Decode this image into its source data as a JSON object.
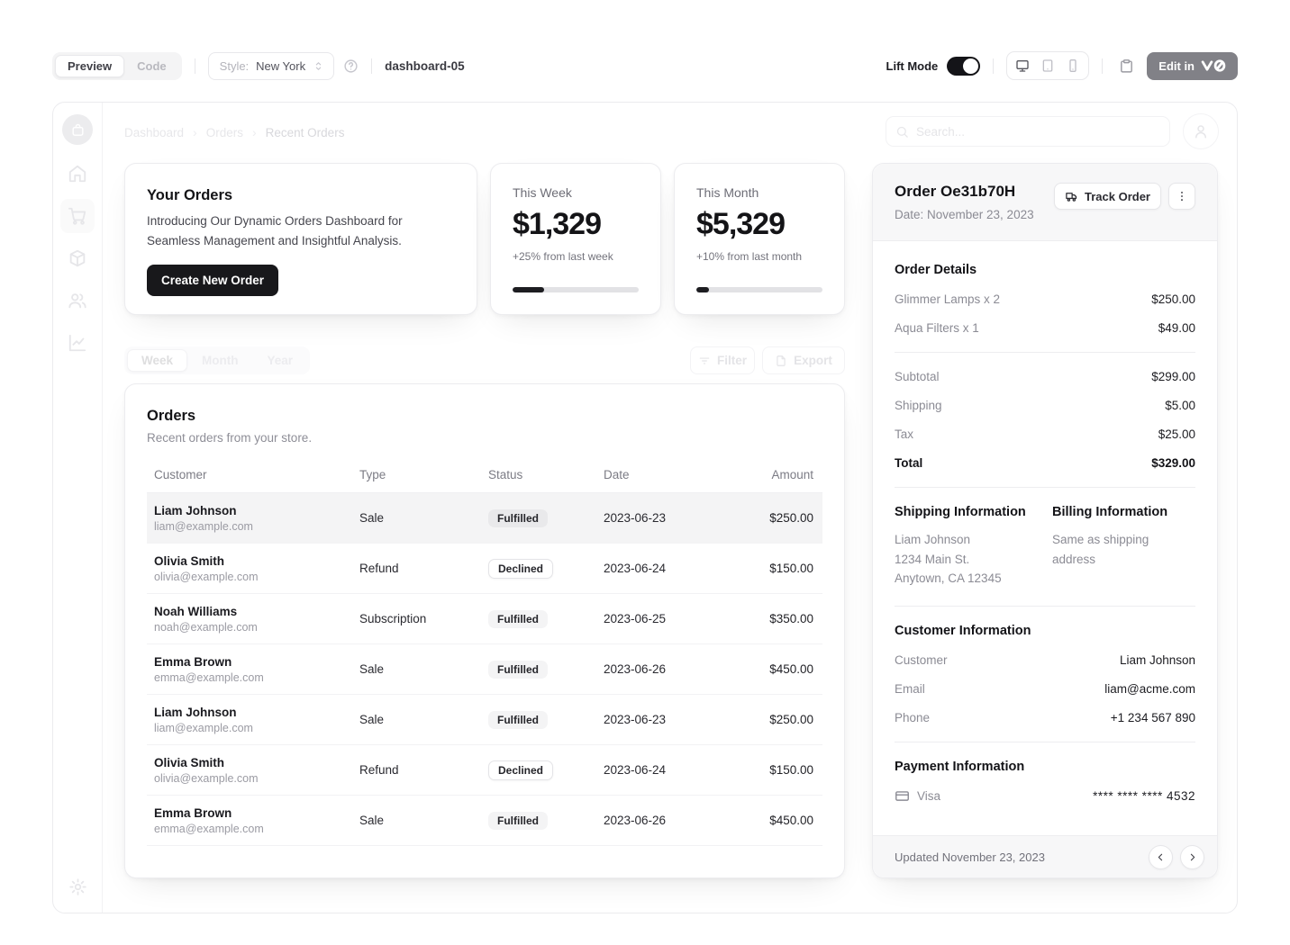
{
  "toolbar": {
    "preview_tab": "Preview",
    "code_tab": "Code",
    "style_label": "Style:",
    "style_value": "New York",
    "project_name": "dashboard-05",
    "lift_mode_label": "Lift Mode",
    "edit_in_label": "Edit in"
  },
  "breadcrumb": {
    "items": [
      {
        "label": "Dashboard",
        "state": "muted"
      },
      {
        "label": "Orders",
        "state": "muted"
      },
      {
        "label": "Recent Orders",
        "state": "active"
      }
    ]
  },
  "search": {
    "placeholder": "Search..."
  },
  "icons": {
    "sidebar": [
      "bag-logo",
      "home",
      "shopping-cart",
      "package",
      "users",
      "line-chart",
      "settings-gear"
    ],
    "toolbar": [
      "help-circle",
      "chevrons-up-down",
      "monitor",
      "tablet",
      "smartphone",
      "clipboard",
      "v0-logo"
    ],
    "misc": [
      "search",
      "user",
      "filter-lines",
      "export-file",
      "truck",
      "ellipsis-vertical",
      "credit-card",
      "chevron-left",
      "chevron-right"
    ]
  },
  "promo_card": {
    "title": "Your Orders",
    "description": "Introducing Our Dynamic Orders Dashboard for Seamless Management and Insightful Analysis.",
    "cta_label": "Create New Order"
  },
  "stat_cards": [
    {
      "label": "This Week",
      "value": "$1,329",
      "delta": "+25% from last week",
      "progress": 25
    },
    {
      "label": "This Month",
      "value": "$5,329",
      "delta": "+10% from last month",
      "progress": 10
    }
  ],
  "period_tabs": [
    {
      "label": "Week",
      "state": "active"
    },
    {
      "label": "Month",
      "state": "muted"
    },
    {
      "label": "Year",
      "state": "muted"
    }
  ],
  "table_actions": {
    "filter_label": "Filter",
    "export_label": "Export"
  },
  "orders_card": {
    "title": "Orders",
    "subtitle": "Recent orders from your store.",
    "columns": [
      "Customer",
      "Type",
      "Status",
      "Date",
      "Amount"
    ],
    "rows": [
      {
        "customer": "Liam Johnson",
        "email": "liam@example.com",
        "type": "Sale",
        "status": "Fulfilled",
        "status_variant": "secondary",
        "date": "2023-06-23",
        "amount": "$250.00",
        "state": "selected"
      },
      {
        "customer": "Olivia Smith",
        "email": "olivia@example.com",
        "type": "Refund",
        "status": "Declined",
        "status_variant": "outline",
        "date": "2023-06-24",
        "amount": "$150.00",
        "state": ""
      },
      {
        "customer": "Noah Williams",
        "email": "noah@example.com",
        "type": "Subscription",
        "status": "Fulfilled",
        "status_variant": "secondary",
        "date": "2023-06-25",
        "amount": "$350.00",
        "state": ""
      },
      {
        "customer": "Emma Brown",
        "email": "emma@example.com",
        "type": "Sale",
        "status": "Fulfilled",
        "status_variant": "secondary",
        "date": "2023-06-26",
        "amount": "$450.00",
        "state": ""
      },
      {
        "customer": "Liam Johnson",
        "email": "liam@example.com",
        "type": "Sale",
        "status": "Fulfilled",
        "status_variant": "secondary",
        "date": "2023-06-23",
        "amount": "$250.00",
        "state": ""
      },
      {
        "customer": "Olivia Smith",
        "email": "olivia@example.com",
        "type": "Refund",
        "status": "Declined",
        "status_variant": "outline",
        "date": "2023-06-24",
        "amount": "$150.00",
        "state": ""
      },
      {
        "customer": "Emma Brown",
        "email": "emma@example.com",
        "type": "Sale",
        "status": "Fulfilled",
        "status_variant": "secondary",
        "date": "2023-06-26",
        "amount": "$450.00",
        "state": ""
      }
    ]
  },
  "order_panel": {
    "title": "Order Oe31b70H",
    "date_label": "Date: November 23, 2023",
    "track_button": "Track Order",
    "details": {
      "heading": "Order Details",
      "items": [
        {
          "name": "Glimmer Lamps x 2",
          "price": "$250.00"
        },
        {
          "name": "Aqua Filters x 1",
          "price": "$49.00"
        }
      ]
    },
    "summary": [
      {
        "label": "Subtotal",
        "value": "$299.00"
      },
      {
        "label": "Shipping",
        "value": "$5.00"
      },
      {
        "label": "Tax",
        "value": "$25.00"
      }
    ],
    "total": {
      "label": "Total",
      "value": "$329.00"
    },
    "shipping": {
      "heading": "Shipping Information",
      "lines": [
        "Liam Johnson",
        "1234 Main St.",
        "Anytown, CA 12345"
      ]
    },
    "billing": {
      "heading": "Billing Information",
      "lines": [
        "Same as shipping address"
      ]
    },
    "customer": {
      "heading": "Customer Information",
      "rows": [
        {
          "label": "Customer",
          "value": "Liam Johnson"
        },
        {
          "label": "Email",
          "value": "liam@acme.com"
        },
        {
          "label": "Phone",
          "value": "+1 234 567 890"
        }
      ]
    },
    "payment": {
      "heading": "Payment Information",
      "method": "Visa",
      "card_number": "**** **** **** 4532"
    },
    "footer": {
      "updated": "Updated November 23, 2023"
    }
  }
}
